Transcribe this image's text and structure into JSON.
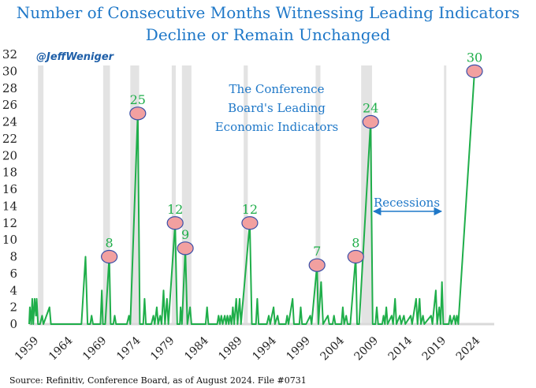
{
  "chart_data": {
    "type": "line",
    "title_lines": [
      "Number of Consecutive Months Witnessing Leading Indicators",
      "Decline or Remain Unchanged"
    ],
    "watermark": "@JeffWeniger",
    "inset_lines": [
      "The Conference",
      "Board's Leading",
      "Economic Indicators"
    ],
    "source": "Source: Refinitiv, Conference Board, as of August 2024. File #0731",
    "x_ticks": [
      "1959",
      "1964",
      "1969",
      "1974",
      "1979",
      "1984",
      "1989",
      "1994",
      "1999",
      "2004",
      "2009",
      "2014",
      "2019",
      "2024"
    ],
    "y_ticks": [
      "0",
      "2",
      "4",
      "6",
      "8",
      "10",
      "12",
      "14",
      "16",
      "18",
      "20",
      "22",
      "24",
      "26",
      "28",
      "30",
      "32"
    ],
    "xlim": [
      1959,
      2027.5
    ],
    "ylim": [
      0,
      32
    ],
    "line_color": "#1fae4a",
    "recession_color": "#e3e3e3",
    "marker_fill": "#f2a0a0",
    "marker_stroke": "#3a4fa8",
    "recessions": [
      [
        1960.3,
        1961.1
      ],
      [
        1969.9,
        1970.9
      ],
      [
        1973.9,
        1975.2
      ],
      [
        1980.0,
        1980.6
      ],
      [
        1981.5,
        1982.9
      ],
      [
        1990.6,
        1991.2
      ],
      [
        2001.2,
        2001.9
      ],
      [
        2007.9,
        2009.5
      ],
      [
        2020.1,
        2020.4
      ]
    ],
    "recessions_annotation": "Recessions",
    "series": [
      {
        "points": [
          [
            1959.0,
            0
          ],
          [
            1959.1,
            2
          ],
          [
            1959.3,
            0
          ],
          [
            1959.45,
            3
          ],
          [
            1959.6,
            0
          ],
          [
            1959.8,
            3
          ],
          [
            1960.0,
            1
          ],
          [
            1960.1,
            3
          ],
          [
            1960.3,
            0
          ],
          [
            1960.6,
            0
          ],
          [
            1960.9,
            1
          ],
          [
            1961.1,
            0
          ],
          [
            1962.0,
            2
          ],
          [
            1962.2,
            0
          ],
          [
            1966.7,
            0
          ],
          [
            1967.3,
            8
          ],
          [
            1967.6,
            0
          ],
          [
            1968.0,
            0
          ],
          [
            1968.2,
            1
          ],
          [
            1968.4,
            0
          ],
          [
            1969.5,
            0
          ],
          [
            1969.7,
            4
          ],
          [
            1969.85,
            0
          ],
          [
            1970.2,
            0
          ],
          [
            1970.8,
            8
          ],
          [
            1971.0,
            0
          ],
          [
            1971.4,
            0
          ],
          [
            1971.6,
            1
          ],
          [
            1971.8,
            0
          ],
          [
            1973.4,
            0
          ],
          [
            1973.7,
            1
          ],
          [
            1973.9,
            0
          ],
          [
            1975.0,
            25
          ],
          [
            1975.3,
            0
          ],
          [
            1975.8,
            0
          ],
          [
            1976.0,
            3
          ],
          [
            1976.2,
            0
          ],
          [
            1977.0,
            0
          ],
          [
            1977.3,
            1
          ],
          [
            1977.5,
            0
          ],
          [
            1977.8,
            2
          ],
          [
            1978.0,
            0
          ],
          [
            1978.3,
            1
          ],
          [
            1978.5,
            0
          ],
          [
            1978.8,
            4
          ],
          [
            1979.0,
            0
          ],
          [
            1979.3,
            3
          ],
          [
            1979.5,
            0
          ],
          [
            1980.5,
            12
          ],
          [
            1980.8,
            0
          ],
          [
            1981.2,
            0
          ],
          [
            1981.3,
            2
          ],
          [
            1981.5,
            0
          ],
          [
            1982.0,
            9
          ],
          [
            1982.3,
            0
          ],
          [
            1982.7,
            2
          ],
          [
            1982.9,
            0
          ],
          [
            1983.5,
            0
          ],
          [
            1985.0,
            0
          ],
          [
            1985.2,
            2
          ],
          [
            1985.4,
            0
          ],
          [
            1986.7,
            0
          ],
          [
            1986.9,
            1
          ],
          [
            1987.1,
            0
          ],
          [
            1987.3,
            1
          ],
          [
            1987.5,
            0
          ],
          [
            1987.8,
            1
          ],
          [
            1988.0,
            0
          ],
          [
            1988.2,
            1
          ],
          [
            1988.4,
            0
          ],
          [
            1988.6,
            1
          ],
          [
            1988.8,
            0
          ],
          [
            1989.0,
            2
          ],
          [
            1989.2,
            0
          ],
          [
            1989.5,
            3
          ],
          [
            1989.7,
            0
          ],
          [
            1990.0,
            3
          ],
          [
            1990.2,
            0
          ],
          [
            1991.5,
            12
          ],
          [
            1991.8,
            0
          ],
          [
            1992.4,
            0
          ],
          [
            1992.6,
            3
          ],
          [
            1992.8,
            0
          ],
          [
            1994.0,
            0
          ],
          [
            1994.3,
            1
          ],
          [
            1994.5,
            0
          ],
          [
            1995.0,
            2
          ],
          [
            1995.2,
            0
          ],
          [
            1995.6,
            1
          ],
          [
            1995.8,
            0
          ],
          [
            1996.8,
            0
          ],
          [
            1997.0,
            1
          ],
          [
            1997.2,
            0
          ],
          [
            1997.8,
            3
          ],
          [
            1998.0,
            0
          ],
          [
            1998.8,
            0
          ],
          [
            1999.0,
            2
          ],
          [
            1999.2,
            0
          ],
          [
            1999.8,
            0
          ],
          [
            2000.4,
            1
          ],
          [
            2000.6,
            0
          ],
          [
            2001.4,
            7
          ],
          [
            2001.6,
            0
          ],
          [
            2002.0,
            5
          ],
          [
            2002.3,
            0
          ],
          [
            2003.0,
            1
          ],
          [
            2003.2,
            0
          ],
          [
            2003.7,
            0
          ],
          [
            2003.9,
            1
          ],
          [
            2004.1,
            0
          ],
          [
            2005.0,
            0
          ],
          [
            2005.2,
            2
          ],
          [
            2005.4,
            0
          ],
          [
            2005.7,
            1
          ],
          [
            2005.9,
            0
          ],
          [
            2006.3,
            0
          ],
          [
            2007.1,
            8
          ],
          [
            2007.3,
            0
          ],
          [
            2007.6,
            0
          ],
          [
            2009.3,
            24
          ],
          [
            2009.6,
            0
          ],
          [
            2010.0,
            0
          ],
          [
            2010.2,
            2
          ],
          [
            2010.4,
            0
          ],
          [
            2011.0,
            0
          ],
          [
            2011.2,
            1
          ],
          [
            2011.4,
            0
          ],
          [
            2011.6,
            2
          ],
          [
            2011.8,
            0
          ],
          [
            2012.4,
            1
          ],
          [
            2012.6,
            0
          ],
          [
            2012.9,
            3
          ],
          [
            2013.1,
            0
          ],
          [
            2013.6,
            1
          ],
          [
            2013.8,
            0
          ],
          [
            2014.2,
            1
          ],
          [
            2014.4,
            0
          ],
          [
            2015.2,
            1
          ],
          [
            2015.4,
            0
          ],
          [
            2016.0,
            3
          ],
          [
            2016.2,
            0
          ],
          [
            2016.5,
            3
          ],
          [
            2016.7,
            0
          ],
          [
            2017.0,
            1
          ],
          [
            2017.2,
            0
          ],
          [
            2018.2,
            1
          ],
          [
            2018.4,
            0
          ],
          [
            2018.9,
            4
          ],
          [
            2019.1,
            0
          ],
          [
            2019.4,
            2
          ],
          [
            2019.6,
            0
          ],
          [
            2019.8,
            5
          ],
          [
            2020.0,
            0
          ],
          [
            2020.8,
            0
          ],
          [
            2021.0,
            1
          ],
          [
            2021.2,
            0
          ],
          [
            2021.6,
            1
          ],
          [
            2021.8,
            0
          ],
          [
            2022.0,
            1
          ],
          [
            2022.2,
            0
          ],
          [
            2024.6,
            30
          ]
        ]
      }
    ],
    "highlighted_peaks": [
      {
        "x": 1970.8,
        "y": 8,
        "label": "8"
      },
      {
        "x": 1975.0,
        "y": 25,
        "label": "25"
      },
      {
        "x": 1980.5,
        "y": 12,
        "label": "12"
      },
      {
        "x": 1982.0,
        "y": 9,
        "label": "9"
      },
      {
        "x": 1991.5,
        "y": 12,
        "label": "12"
      },
      {
        "x": 2001.4,
        "y": 7,
        "label": "7"
      },
      {
        "x": 2007.1,
        "y": 8,
        "label": "8"
      },
      {
        "x": 2009.3,
        "y": 24,
        "label": "24"
      },
      {
        "x": 2024.6,
        "y": 30,
        "label": "30"
      }
    ]
  }
}
